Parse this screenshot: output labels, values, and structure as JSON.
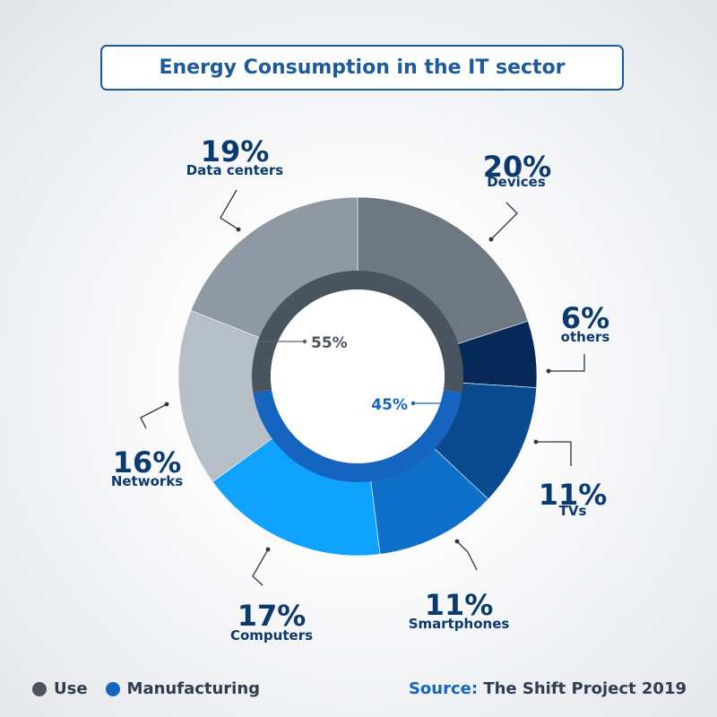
{
  "colors": {
    "use": "#4a545e",
    "manufacturing": "#1565c0",
    "title": "#1d5a9c",
    "label": "#0b3a6e"
  },
  "chart_data": {
    "type": "pie",
    "title": "Energy Consumption in the IT sector",
    "segments": [
      {
        "label": "Devices",
        "percent_text": "20%",
        "value": 20,
        "group": "use",
        "color": "#6e7882"
      },
      {
        "label": "others",
        "percent_text": "6%",
        "value": 6,
        "group": "manufacturing",
        "color": "#06295a"
      },
      {
        "label": "TVs",
        "percent_text": "11%",
        "value": 11,
        "group": "manufacturing",
        "color": "#0a4a8f"
      },
      {
        "label": "Smartphones",
        "percent_text": "11%",
        "value": 11,
        "group": "manufacturing",
        "color": "#0e70c8"
      },
      {
        "label": "Computers",
        "percent_text": "17%",
        "value": 17,
        "group": "manufacturing",
        "color": "#0fa3ff"
      },
      {
        "label": "Networks",
        "percent_text": "16%",
        "value": 16,
        "group": "use",
        "color": "#b6bec8"
      },
      {
        "label": "Data centers",
        "percent_text": "19%",
        "value": 19,
        "group": "use",
        "color": "#8f99a4"
      }
    ],
    "inner_ring": [
      {
        "label": "Use",
        "value": 55,
        "value_text": "55%",
        "color": "#4a545e"
      },
      {
        "label": "Manufacturing",
        "value": 45,
        "value_text": "45%",
        "color": "#1565c0"
      }
    ]
  },
  "legend": {
    "use_label": "Use",
    "manufacturing_label": "Manufacturing"
  },
  "source": {
    "label": "Source:",
    "text": "The Shift Project 2019"
  }
}
